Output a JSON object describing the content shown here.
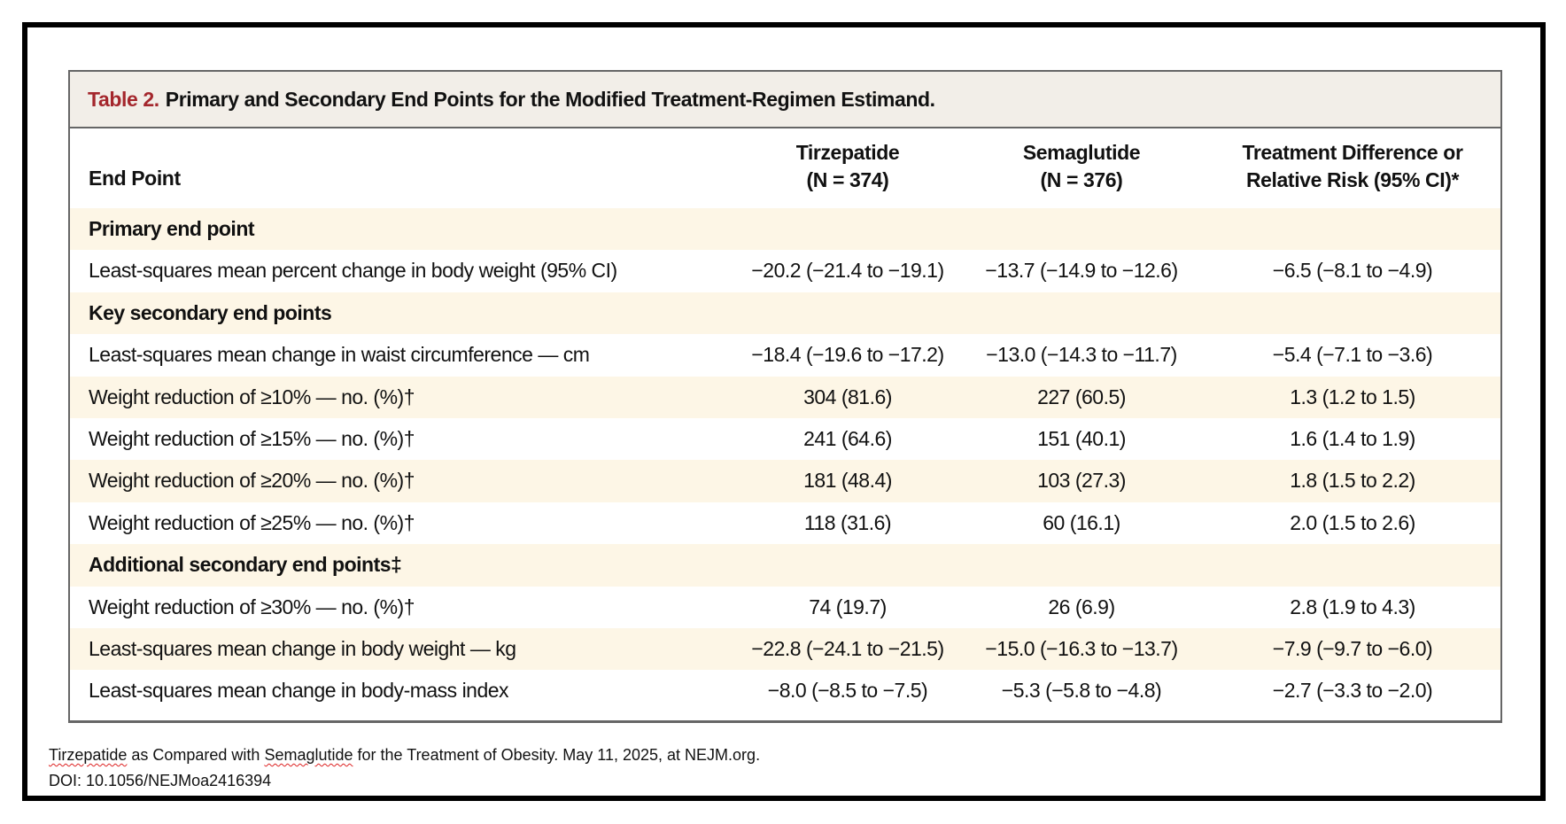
{
  "table": {
    "label": "Table 2.",
    "title": "Primary and Secondary End Points for the Modified Treatment-Regimen Estimand.",
    "columns": {
      "end_point": "End Point",
      "tirzepatide": "Tirzepatide",
      "tirzepatide_n": "(N = 374)",
      "semaglutide": "Semaglutide",
      "semaglutide_n": "(N = 376)",
      "difference_line1": "Treatment Difference or",
      "difference_line2": "Relative Risk (95% CI)*"
    },
    "rows": [
      {
        "label": "Primary end point",
        "section": true
      },
      {
        "label": "Least-squares mean percent change in body weight (95% CI)",
        "tirzepatide": "−20.2 (−21.4 to −19.1)",
        "semaglutide": "−13.7 (−14.9 to −12.6)",
        "difference": "−6.5 (−8.1 to −4.9)"
      },
      {
        "label": "Key secondary end points",
        "section": true
      },
      {
        "label": "Least-squares mean change in waist circumference — cm",
        "tirzepatide": "−18.4 (−19.6 to −17.2)",
        "semaglutide": "−13.0 (−14.3 to −11.7)",
        "difference": "−5.4 (−7.1 to −3.6)"
      },
      {
        "label": "Weight reduction of ≥10% — no. (%)†",
        "tirzepatide": "304 (81.6)",
        "semaglutide": "227 (60.5)",
        "difference": "1.3 (1.2 to 1.5)"
      },
      {
        "label": "Weight reduction of ≥15% — no. (%)†",
        "tirzepatide": "241 (64.6)",
        "semaglutide": "151 (40.1)",
        "difference": "1.6 (1.4 to 1.9)"
      },
      {
        "label": "Weight reduction of ≥20% — no. (%)†",
        "tirzepatide": "181 (48.4)",
        "semaglutide": "103 (27.3)",
        "difference": "1.8 (1.5 to 2.2)"
      },
      {
        "label": "Weight reduction of ≥25% — no. (%)†",
        "tirzepatide": "118 (31.6)",
        "semaglutide": "60 (16.1)",
        "difference": "2.0 (1.5 to 2.6)"
      },
      {
        "label": "Additional secondary end points‡",
        "section": true
      },
      {
        "label": "Weight reduction of ≥30% — no. (%)†",
        "tirzepatide": "74 (19.7)",
        "semaglutide": "26 (6.9)",
        "difference": "2.8 (1.9 to 4.3)"
      },
      {
        "label": "Least-squares mean change in body weight — kg",
        "tirzepatide": "−22.8 (−24.1 to −21.5)",
        "semaglutide": "−15.0 (−16.3 to −13.7)",
        "difference": "−7.9 (−9.7 to −6.0)"
      },
      {
        "label": "Least-squares mean change in body-mass index",
        "tirzepatide": "−8.0 (−8.5 to −7.5)",
        "semaglutide": "−5.3 (−5.8 to −4.8)",
        "difference": "−2.7 (−3.3 to −2.0)"
      }
    ]
  },
  "caption": {
    "word1": "Tirzepatide",
    "text1": " as Compared with ",
    "word2": "Semaglutide",
    "text2": " for the Treatment of Obesity. May 11, 2025, at NEJM.org.",
    "doi": "DOI: 10.1056/NEJMoa2416394"
  },
  "colors": {
    "label_red": "#a4262c",
    "title_bar": "#f2eee8",
    "row_shade": "#fdf6e6"
  }
}
